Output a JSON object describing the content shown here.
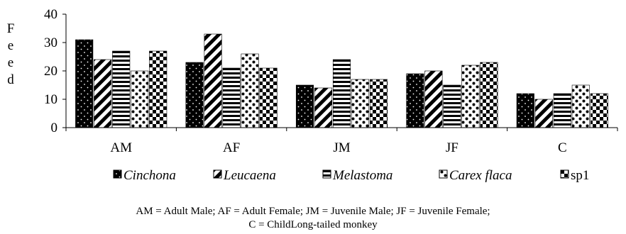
{
  "chart_data": {
    "type": "bar",
    "title": "",
    "ylabel": "F\ne\ne\nd",
    "xlabel": "",
    "ylim": [
      0,
      40
    ],
    "yticks": [
      0,
      10,
      20,
      30,
      40
    ],
    "categories": [
      "AM",
      "AF",
      "JM",
      "JF",
      "C"
    ],
    "series": [
      {
        "name": "Cinchona",
        "pattern": "dots-on-black",
        "values": [
          31,
          23,
          15,
          19,
          12
        ]
      },
      {
        "name": "Leucaena",
        "pattern": "diagonal-stripes",
        "values": [
          24,
          33,
          14,
          20,
          10
        ]
      },
      {
        "name": "Melastoma",
        "pattern": "horizontal-stripes",
        "values": [
          27,
          21,
          24,
          15,
          12
        ]
      },
      {
        "name": "Carex flaca",
        "pattern": "large-dots",
        "values": [
          20,
          26,
          17,
          22,
          15
        ]
      },
      {
        "name": "sp1",
        "pattern": "checkerboard",
        "values": [
          27,
          21,
          17,
          23,
          12
        ]
      }
    ],
    "legend_position": "bottom",
    "grid": false,
    "colors": {
      "fill": "#000000",
      "background": "#ffffff"
    }
  },
  "caption": {
    "line1": "AM = Adult Male; AF = Adult Female; JM = Juvenile Male; JF = Juvenile Female;",
    "line2": "C = ChildLong-tailed monkey"
  }
}
